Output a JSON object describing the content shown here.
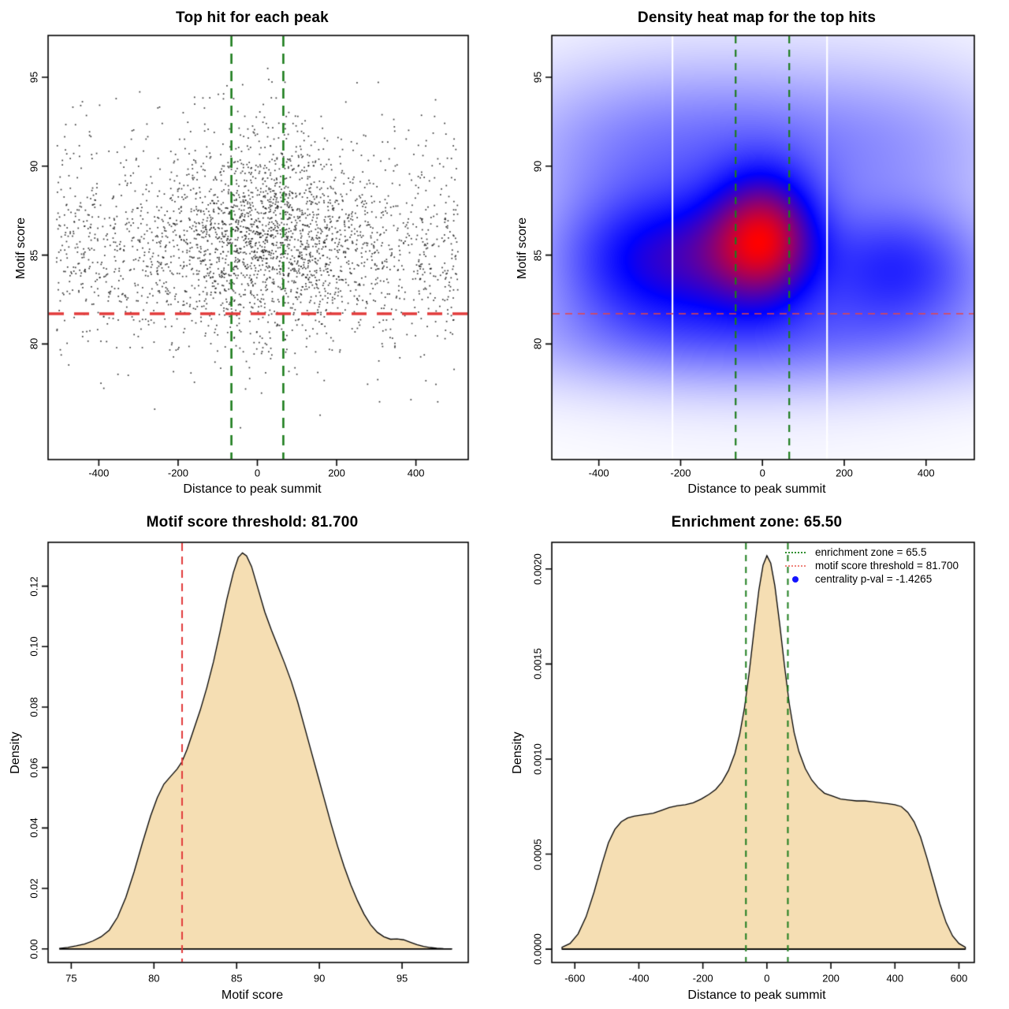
{
  "figure": {
    "background": "#ffffff",
    "values": {
      "motif_score_threshold": 81.7,
      "enrichment_zone": 65.5,
      "centrality_p_val": -1.4265
    },
    "colors": {
      "threshold_red": "#e23b3b",
      "heatmap_red_line": "#e84444",
      "enrichment_green": "#1d7d1d",
      "legend_green": "#2f8f2f",
      "legend_red": "#ef837b",
      "centrality_blue": "#1414ff",
      "density_fill": "#f5deb3",
      "density_stroke": "#000000",
      "point_color": "#1c1c1c",
      "heat_colormap": [
        "#ffffff",
        "#0000ff",
        "#ff0000"
      ]
    }
  },
  "chart_data": [
    {
      "type": "scatter",
      "title": "Top hit for each peak",
      "xlabel": "Distance to peak summit",
      "ylabel": "Motif score",
      "xlim": [
        -528,
        532
      ],
      "ylim": [
        73.5,
        97.35
      ],
      "xticks": {
        "values": [
          -400,
          -200,
          0,
          200,
          400
        ],
        "labels": [
          "-400",
          "-200",
          "0",
          "200",
          "400"
        ]
      },
      "yticks": {
        "values": [
          80,
          85,
          90,
          95
        ],
        "labels": [
          "80",
          "85",
          "90",
          "95"
        ]
      },
      "grid": false,
      "points_summary": "approx. 3000 top motif hits; x uniform over +/-505 bp with strong enrichment near summit (sd ~125 bp); motif score mode 85.2, range ~74.5-97",
      "generated_points": {
        "n": 3000,
        "seed": 42,
        "point_size": 1.7,
        "point_alpha": 0.88,
        "x_components": [
          {
            "type": "uniform",
            "w": 0.58,
            "min": -507,
            "max": 507
          },
          {
            "type": "normal",
            "w": 0.42,
            "mean": 15,
            "sd": 125
          }
        ],
        "y_components_background": [
          {
            "w": 0.6,
            "mean": 84.8,
            "sd": 2.1
          },
          {
            "w": 0.3,
            "mean": 87.8,
            "sd": 2.9
          },
          {
            "w": 0.1,
            "mean": 80.8,
            "sd": 1.9
          }
        ],
        "y_components_central": [
          {
            "w": 0.65,
            "mean": 85.9,
            "sd": 2.0
          },
          {
            "w": 0.27,
            "mean": 88.6,
            "sd": 2.6
          },
          {
            "w": 0.08,
            "mean": 81.5,
            "sd": 1.8
          }
        ],
        "y_clip": [
          74.2,
          97.0
        ]
      },
      "vlines": [
        {
          "x": -65.5,
          "color": "#1d7d1d",
          "width": 2.6,
          "dash": [
            13,
            9
          ]
        },
        {
          "x": 65.5,
          "color": "#1d7d1d",
          "width": 2.6,
          "dash": [
            13,
            9
          ]
        }
      ],
      "hlines": [
        {
          "y": 81.7,
          "color": "#e23b3b",
          "width": 3.6,
          "dash": [
            19,
            13
          ]
        }
      ]
    },
    {
      "type": "heatmap",
      "title": "Density heat map for the top hits",
      "xlabel": "Distance to peak summit",
      "ylabel": "Motif score",
      "xlim": [
        -515,
        518
      ],
      "ylim": [
        73.5,
        97.35
      ],
      "xticks": {
        "values": [
          -400,
          -200,
          0,
          200,
          400
        ],
        "labels": [
          "-400",
          "-200",
          "0",
          "200",
          "400"
        ]
      },
      "yticks": {
        "values": [
          80,
          85,
          90,
          95
        ],
        "labels": [
          "80",
          "85",
          "90",
          "95"
        ]
      },
      "colormap": [
        "#ffffff",
        "#0000ff",
        "#ff0000"
      ],
      "gamma": 0.8,
      "blue_breakpoint": 0.55,
      "peak": {
        "x": 8,
        "y": 85.9
      },
      "density_components": [
        {
          "w": 1.0,
          "mx": 8,
          "sx": 90,
          "my": 85.9,
          "sy": 2.5
        },
        {
          "w": 0.52,
          "mx": -300,
          "sx": 150,
          "my": 84.7,
          "sy": 2.6
        },
        {
          "w": 0.46,
          "mx": 330,
          "sx": 150,
          "my": 84.3,
          "sy": 2.3
        },
        {
          "w": 0.34,
          "mx": -120,
          "sx": 120,
          "my": 84.9,
          "sy": 2.5
        },
        {
          "w": 0.26,
          "mx": 0,
          "sx": 420,
          "my": 80.4,
          "sy": 2.0
        },
        {
          "w": 0.2,
          "mx": -60,
          "sx": 230,
          "my": 91.3,
          "sy": 2.9
        },
        {
          "w": 0.13,
          "mx": 360,
          "sx": 200,
          "my": 91.3,
          "sy": 3.0
        },
        {
          "w": 0.13,
          "mx": -380,
          "sx": 190,
          "my": 91.0,
          "sy": 3.0
        },
        {
          "w": 0.1,
          "mx": 0,
          "sx": 380,
          "my": 87.0,
          "sy": 6.0
        }
      ],
      "white_stripes_x": [
        -220,
        158
      ],
      "vlines": [
        {
          "x": -65.5,
          "color": "#1d7d1d",
          "width": 2.2,
          "dash": [
            9,
            8
          ]
        },
        {
          "x": 65.5,
          "color": "#1d7d1d",
          "width": 2.2,
          "dash": [
            9,
            8
          ]
        }
      ],
      "hlines": [
        {
          "y": 81.7,
          "color": "#e84444",
          "width": 1.6,
          "dash": [
            9,
            7
          ]
        }
      ]
    },
    {
      "type": "area",
      "title": "Motif score threshold: 81.700",
      "xlabel": "Motif score",
      "ylabel": "Density",
      "xlim": [
        73.6,
        99.0
      ],
      "ylim": [
        -0.0045,
        0.1345
      ],
      "xticks": {
        "values": [
          75,
          80,
          85,
          90,
          95
        ],
        "labels": [
          "75",
          "80",
          "85",
          "90",
          "95"
        ]
      },
      "yticks": {
        "values": [
          0.0,
          0.02,
          0.04,
          0.06,
          0.08,
          0.1,
          0.12
        ],
        "labels": [
          "0.00",
          "0.02",
          "0.04",
          "0.06",
          "0.08",
          "0.10",
          "0.12"
        ]
      },
      "fill": "#f5deb3",
      "stroke": "#000000",
      "points": [
        [
          74.3,
          0.0002
        ],
        [
          74.8,
          0.0005
        ],
        [
          75.3,
          0.001
        ],
        [
          75.8,
          0.0016
        ],
        [
          76.3,
          0.0026
        ],
        [
          76.8,
          0.004
        ],
        [
          77.3,
          0.0062
        ],
        [
          77.8,
          0.0105
        ],
        [
          78.3,
          0.017
        ],
        [
          78.8,
          0.0255
        ],
        [
          79.3,
          0.035
        ],
        [
          79.8,
          0.044
        ],
        [
          80.2,
          0.05
        ],
        [
          80.6,
          0.0545
        ],
        [
          81.0,
          0.057
        ],
        [
          81.4,
          0.0595
        ],
        [
          81.7,
          0.062
        ],
        [
          82.0,
          0.066
        ],
        [
          82.4,
          0.0725
        ],
        [
          82.8,
          0.079
        ],
        [
          83.2,
          0.0865
        ],
        [
          83.6,
          0.095
        ],
        [
          84.0,
          0.105
        ],
        [
          84.4,
          0.1155
        ],
        [
          84.8,
          0.1245
        ],
        [
          85.1,
          0.1295
        ],
        [
          85.35,
          0.131
        ],
        [
          85.6,
          0.13
        ],
        [
          85.9,
          0.1265
        ],
        [
          86.3,
          0.119
        ],
        [
          86.7,
          0.1115
        ],
        [
          87.1,
          0.1055
        ],
        [
          87.5,
          0.1
        ],
        [
          87.9,
          0.0945
        ],
        [
          88.3,
          0.0885
        ],
        [
          88.7,
          0.0815
        ],
        [
          89.1,
          0.0735
        ],
        [
          89.5,
          0.0655
        ],
        [
          89.9,
          0.0575
        ],
        [
          90.3,
          0.0495
        ],
        [
          90.7,
          0.0415
        ],
        [
          91.1,
          0.034
        ],
        [
          91.5,
          0.0272
        ],
        [
          91.9,
          0.0212
        ],
        [
          92.3,
          0.016
        ],
        [
          92.7,
          0.0115
        ],
        [
          93.1,
          0.008
        ],
        [
          93.5,
          0.0055
        ],
        [
          93.9,
          0.004
        ],
        [
          94.3,
          0.0032
        ],
        [
          94.7,
          0.0033
        ],
        [
          95.1,
          0.003
        ],
        [
          95.5,
          0.0022
        ],
        [
          95.9,
          0.0014
        ],
        [
          96.3,
          0.0008
        ],
        [
          96.7,
          0.00045
        ],
        [
          97.1,
          0.00025
        ],
        [
          97.5,
          0.0001
        ],
        [
          98.0,
          3e-05
        ]
      ],
      "vlines": [
        {
          "x": 81.7,
          "color": "#e23b3b",
          "width": 2.0,
          "dash": [
            10,
            7
          ]
        }
      ],
      "hlines": []
    },
    {
      "type": "area",
      "title": "Enrichment zone: 65.50",
      "xlabel": "Distance to peak summit",
      "ylabel": "Density",
      "xlim": [
        -672,
        648
      ],
      "ylim": [
        -7e-05,
        0.00214
      ],
      "xticks": {
        "values": [
          -600,
          -400,
          -200,
          0,
          200,
          400,
          600
        ],
        "labels": [
          "-600",
          "-400",
          "-200",
          "0",
          "200",
          "400",
          "600"
        ]
      },
      "yticks": {
        "values": [
          0.0,
          0.0005,
          0.001,
          0.0015,
          0.002
        ],
        "labels": [
          "0.0000",
          "0.0005",
          "0.0010",
          "0.0015",
          "0.0020"
        ]
      },
      "fill": "#f5deb3",
      "stroke": "#000000",
      "points": [
        [
          -640,
          1e-05
        ],
        [
          -615,
          3e-05
        ],
        [
          -590,
          8e-05
        ],
        [
          -565,
          0.00017
        ],
        [
          -540,
          0.0003
        ],
        [
          -515,
          0.00045
        ],
        [
          -495,
          0.00056
        ],
        [
          -475,
          0.00063
        ],
        [
          -455,
          0.00067
        ],
        [
          -435,
          0.00069
        ],
        [
          -415,
          0.0007
        ],
        [
          -395,
          0.000705
        ],
        [
          -375,
          0.00071
        ],
        [
          -355,
          0.000715
        ],
        [
          -330,
          0.00073
        ],
        [
          -305,
          0.000745
        ],
        [
          -280,
          0.000755
        ],
        [
          -255,
          0.00076
        ],
        [
          -230,
          0.00077
        ],
        [
          -205,
          0.00079
        ],
        [
          -180,
          0.000815
        ],
        [
          -160,
          0.00084
        ],
        [
          -140,
          0.00088
        ],
        [
          -120,
          0.00094
        ],
        [
          -100,
          0.00103
        ],
        [
          -85,
          0.00113
        ],
        [
          -70,
          0.00127
        ],
        [
          -55,
          0.00146
        ],
        [
          -40,
          0.00168
        ],
        [
          -25,
          0.00189
        ],
        [
          -12,
          0.00202
        ],
        [
          0,
          0.00207
        ],
        [
          12,
          0.00203
        ],
        [
          25,
          0.00191
        ],
        [
          40,
          0.00171
        ],
        [
          55,
          0.00149
        ],
        [
          70,
          0.00129
        ],
        [
          85,
          0.00114
        ],
        [
          100,
          0.00104
        ],
        [
          120,
          0.00095
        ],
        [
          140,
          0.00089
        ],
        [
          160,
          0.00085
        ],
        [
          180,
          0.00082
        ],
        [
          205,
          0.000805
        ],
        [
          230,
          0.00079
        ],
        [
          255,
          0.000785
        ],
        [
          280,
          0.00078
        ],
        [
          305,
          0.00078
        ],
        [
          330,
          0.000775
        ],
        [
          355,
          0.00077
        ],
        [
          380,
          0.000765
        ],
        [
          400,
          0.00076
        ],
        [
          420,
          0.00075
        ],
        [
          440,
          0.00072
        ],
        [
          460,
          0.00067
        ],
        [
          480,
          0.00059
        ],
        [
          500,
          0.00048
        ],
        [
          520,
          0.00036
        ],
        [
          540,
          0.00024
        ],
        [
          560,
          0.00014
        ],
        [
          580,
          7e-05
        ],
        [
          600,
          3e-05
        ],
        [
          620,
          1e-05
        ]
      ],
      "vlines": [
        {
          "x": -65.5,
          "color": "#1d7d1d",
          "width": 2.0,
          "dash": [
            8,
            7
          ]
        },
        {
          "x": 65.5,
          "color": "#1d7d1d",
          "width": 2.0,
          "dash": [
            8,
            7
          ]
        }
      ],
      "hlines": [],
      "legend": {
        "position": "top-right",
        "items": [
          {
            "label": "enrichment zone = 65.5",
            "swatch": "dotted-line",
            "color": "#2f8f2f"
          },
          {
            "label": "motif score threshold = 81.700",
            "swatch": "dotted-line",
            "color": "#ef837b"
          },
          {
            "label": "centrality p-val = -1.4265",
            "swatch": "dot",
            "color": "#1414ff"
          }
        ]
      }
    }
  ]
}
